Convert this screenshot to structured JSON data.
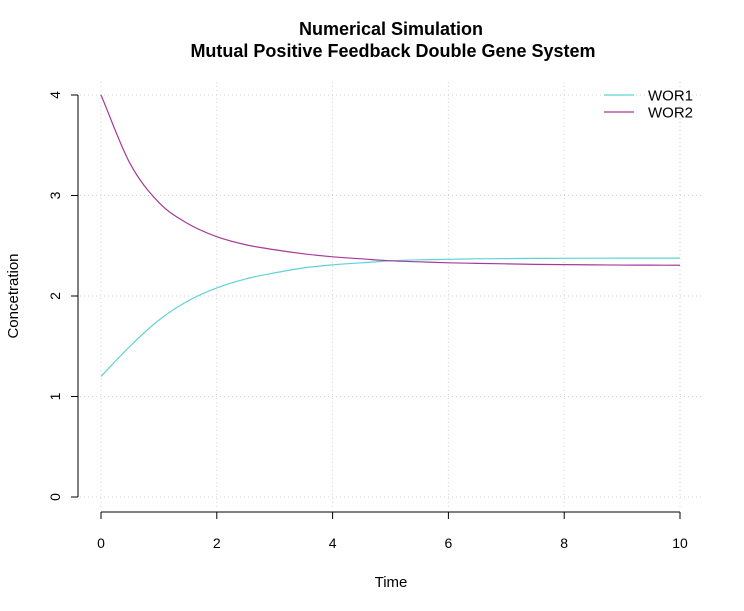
{
  "chart_data": {
    "type": "line",
    "title": "Numerical Simulation",
    "subtitle": "Mutual Positive Feedback Double Gene System",
    "xlabel": "Time",
    "ylabel": "Concetration",
    "xlim": [
      0,
      10
    ],
    "ylim": [
      0,
      4
    ],
    "xticks": [
      "0",
      "2",
      "4",
      "6",
      "8",
      "10"
    ],
    "yticks": [
      "0",
      "1",
      "2",
      "3",
      "4"
    ],
    "grid": true,
    "legend_position": "top-right",
    "x": [
      0,
      0.5,
      1,
      1.5,
      2,
      2.5,
      3,
      3.5,
      4,
      4.5,
      5,
      5.5,
      6,
      6.5,
      7,
      7.5,
      8,
      8.5,
      9,
      9.5,
      10
    ],
    "series": [
      {
        "name": "WOR1",
        "color": "#5fd3d3",
        "values": [
          1.2,
          1.5,
          1.76,
          1.95,
          2.08,
          2.17,
          2.23,
          2.28,
          2.31,
          2.33,
          2.35,
          2.36,
          2.365,
          2.37,
          2.372,
          2.374,
          2.375,
          2.376,
          2.377,
          2.377,
          2.377
        ]
      },
      {
        "name": "WOR2",
        "color": "#a8399a",
        "values": [
          4.0,
          3.32,
          2.93,
          2.72,
          2.59,
          2.51,
          2.46,
          2.42,
          2.39,
          2.37,
          2.35,
          2.34,
          2.33,
          2.325,
          2.32,
          2.315,
          2.312,
          2.31,
          2.308,
          2.307,
          2.306
        ]
      }
    ]
  }
}
